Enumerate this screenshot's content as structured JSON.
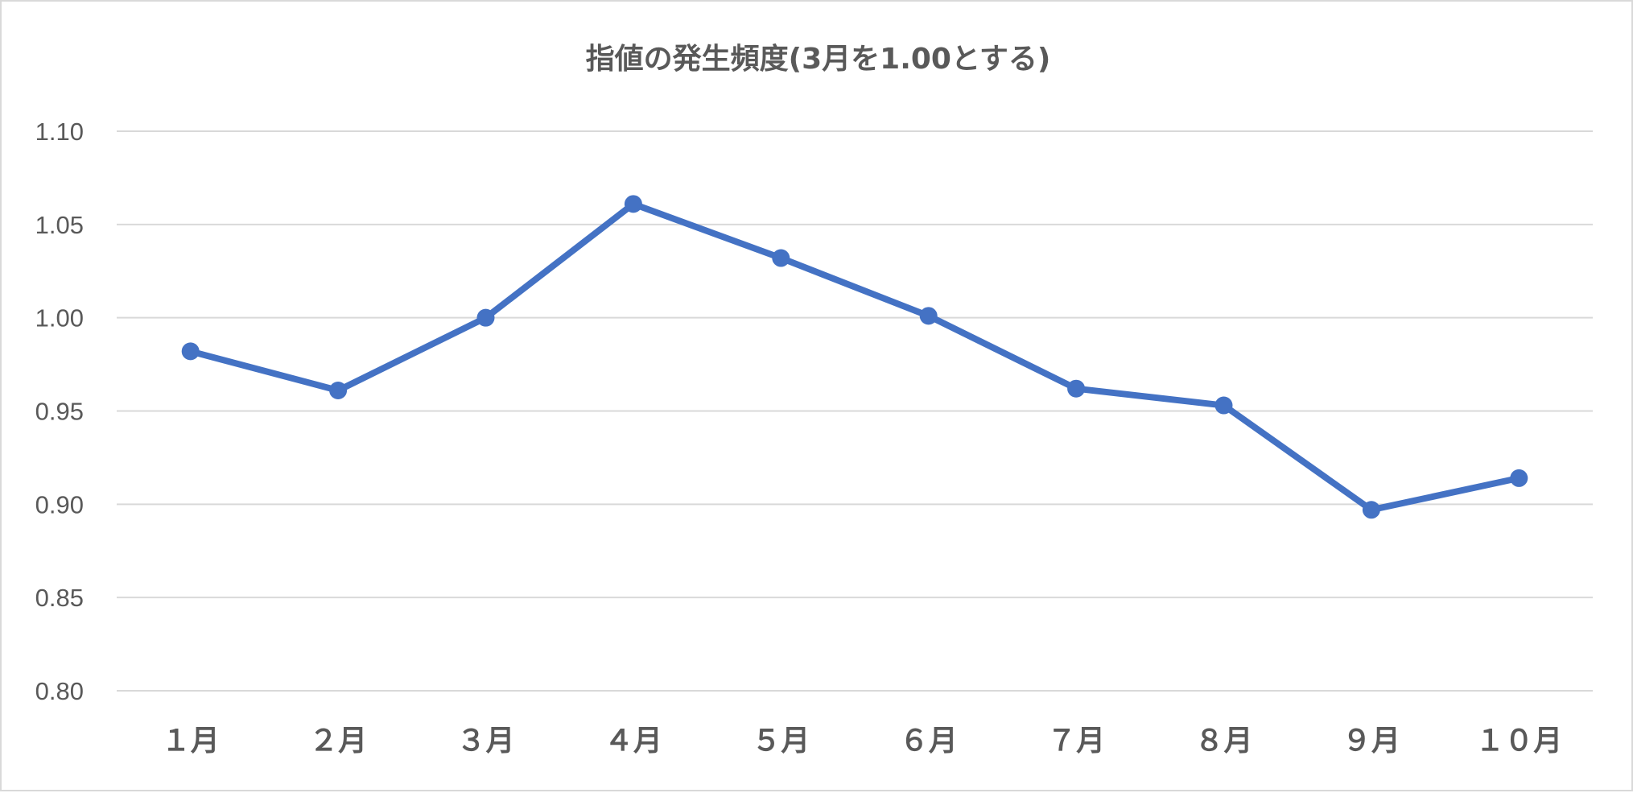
{
  "chart_data": {
    "type": "line",
    "title": "指値の発生頻度(3月を1.00とする)",
    "xlabel": "",
    "ylabel": "",
    "categories": [
      "１月",
      "２月",
      "３月",
      "４月",
      "５月",
      "６月",
      "７月",
      "８月",
      "９月",
      "１０月"
    ],
    "series": [
      {
        "values": [
          0.982,
          0.961,
          1.0,
          1.061,
          1.032,
          1.001,
          0.962,
          0.953,
          0.897,
          0.914
        ]
      }
    ],
    "ylim": [
      0.8,
      1.1
    ],
    "yticks": [
      "0.80",
      "0.85",
      "0.90",
      "0.95",
      "1.00",
      "1.05",
      "1.10"
    ],
    "grid": true,
    "legend": "none",
    "colors": {
      "series": "#4472c4",
      "grid": "#d9d9d9",
      "text": "#595959"
    }
  }
}
